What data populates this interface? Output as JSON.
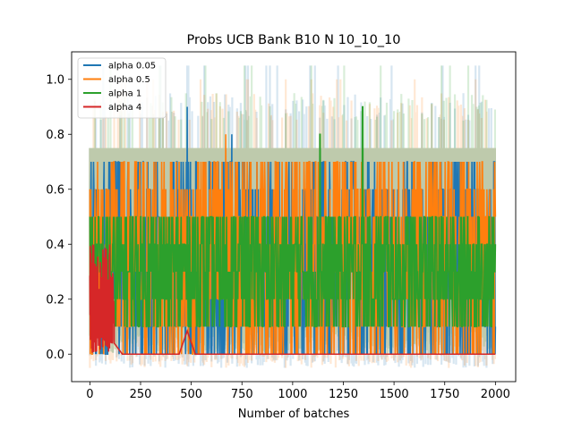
{
  "chart_data": {
    "type": "line",
    "title": "Probs UCB Bank B10 N 10_10_10",
    "xlabel": "Number of batches",
    "ylabel": "",
    "xlim": [
      -90,
      2100
    ],
    "ylim": [
      -0.1,
      1.1
    ],
    "xticks": [
      0,
      250,
      500,
      750,
      1000,
      1250,
      1500,
      1750,
      2000
    ],
    "yticks": [
      0.0,
      0.2,
      0.4,
      0.6,
      0.8,
      1.0
    ],
    "xtick_labels": [
      "0",
      "250",
      "500",
      "750",
      "1000",
      "1250",
      "1500",
      "1750",
      "2000"
    ],
    "ytick_labels": [
      "0.0",
      "0.2",
      "0.4",
      "0.6",
      "0.8",
      "1.0"
    ],
    "grid": false,
    "legend_position": "top-left",
    "series": [
      {
        "name": "alpha 0.05",
        "color": "#1f77b4",
        "x_range": [
          0,
          2000
        ],
        "mean_level": 0.35,
        "value_levels": [
          0.0,
          0.1,
          0.2,
          0.3,
          0.4,
          0.5,
          0.6,
          0.7
        ],
        "peak_values": [
          {
            "x": 480,
            "y": 0.9
          },
          {
            "x": 700,
            "y": 0.8
          }
        ],
        "band": [
          0.05,
          0.75
        ],
        "band_peaks": [
          1.05
        ]
      },
      {
        "name": "alpha 0.5",
        "color": "#ff7f0e",
        "x_range": [
          0,
          2000
        ],
        "mean_level": 0.35,
        "value_levels": [
          0.0,
          0.1,
          0.2,
          0.3,
          0.4,
          0.5,
          0.6,
          0.7
        ],
        "peak_values": [
          {
            "x": 670,
            "y": 0.8
          }
        ],
        "band": [
          0.05,
          0.75
        ],
        "band_peaks": [
          1.0
        ]
      },
      {
        "name": "alpha 1",
        "color": "#2ca02c",
        "x_range": [
          0,
          2000
        ],
        "mean_level": 0.3,
        "value_levels": [
          0.1,
          0.2,
          0.3,
          0.4,
          0.5
        ],
        "peak_values": [
          {
            "x": 1345,
            "y": 0.9
          },
          {
            "x": 1135,
            "y": 0.8
          }
        ],
        "band": [
          0.1,
          0.75
        ],
        "band_peaks": [
          1.05
        ]
      },
      {
        "name": "alpha 4",
        "color": "#d62728",
        "x_range": [
          0,
          2000
        ],
        "initial_spike_range": [
          0,
          120
        ],
        "initial_max": 0.4,
        "steady_value": 0.0,
        "band": [
          0.0,
          0.0
        ]
      }
    ]
  }
}
